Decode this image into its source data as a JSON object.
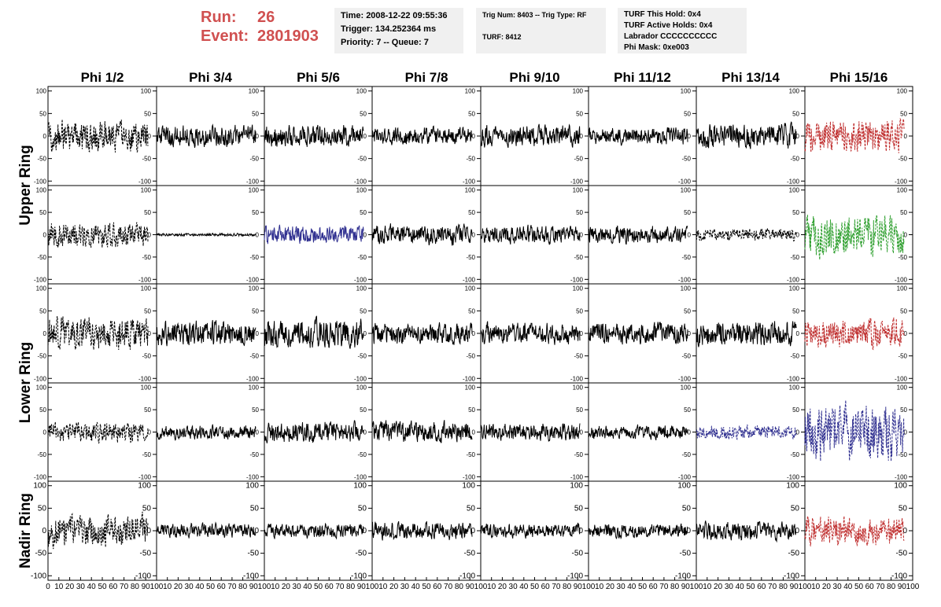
{
  "header": {
    "run_label": "Run:",
    "run_value": "26",
    "event_label": "Event:",
    "event_value": "2801903",
    "box1": [
      "Time: 2008-12-22 09:55:36",
      "Trigger: 134.252364 ms",
      "Priority: 7 -- Queue: 7"
    ],
    "box2": [
      "Trig Num: 8403 -- Trig Type: RF",
      "",
      "TURF: 8412"
    ],
    "box3": [
      "TURF This Hold: 0x4",
      "TURF Active Holds: 0x4",
      "Labrador CCCCCCCCCC",
      "Phi Mask: 0xe003"
    ]
  },
  "colors": {
    "black": "#000000",
    "red": "#c03030",
    "green": "#30a030",
    "blue": "#303090"
  },
  "chart_data": {
    "type": "line",
    "columns": [
      "Phi 1/2",
      "Phi 3/4",
      "Phi 5/6",
      "Phi 7/8",
      "Phi 9/10",
      "Phi 11/12",
      "Phi 13/14",
      "Phi 15/16"
    ],
    "ring_labels": [
      {
        "text": "Upper Ring",
        "rows": [
          0,
          1
        ]
      },
      {
        "text": "Lower Ring",
        "rows": [
          2,
          3
        ]
      },
      {
        "text": "Nadir Ring",
        "rows": [
          4,
          4
        ]
      }
    ],
    "xlim": [
      0,
      100
    ],
    "ylim": [
      -110,
      110
    ],
    "y_ticks": [
      -100,
      -50,
      0,
      50,
      100
    ],
    "x_tick_labels": [
      "0",
      "10",
      "20",
      "30",
      "40",
      "50",
      "60",
      "70",
      "80",
      "90",
      "100"
    ],
    "panels": [
      [
        {
          "color": "black",
          "amp": 45,
          "style": "dashed"
        },
        {
          "color": "black",
          "amp": 30,
          "style": "solid"
        },
        {
          "color": "black",
          "amp": 30,
          "style": "solid"
        },
        {
          "color": "black",
          "amp": 25,
          "style": "solid"
        },
        {
          "color": "black",
          "amp": 30,
          "style": "solid"
        },
        {
          "color": "black",
          "amp": 25,
          "style": "solid"
        },
        {
          "color": "black",
          "amp": 35,
          "style": "solid"
        },
        {
          "color": "red",
          "amp": 45,
          "style": "dashed"
        }
      ],
      [
        {
          "color": "black",
          "amp": 35,
          "style": "dashed"
        },
        {
          "color": "black",
          "amp": 4,
          "style": "solid"
        },
        {
          "color": "blue",
          "amp": 25,
          "style": "solid"
        },
        {
          "color": "black",
          "amp": 30,
          "style": "solid"
        },
        {
          "color": "black",
          "amp": 25,
          "style": "solid"
        },
        {
          "color": "black",
          "amp": 25,
          "style": "solid"
        },
        {
          "color": "black",
          "amp": 18,
          "style": "dashed"
        },
        {
          "color": "green",
          "amp": 60,
          "style": "dashed"
        }
      ],
      [
        {
          "color": "black",
          "amp": 45,
          "style": "dashed"
        },
        {
          "color": "black",
          "amp": 35,
          "style": "solid"
        },
        {
          "color": "black",
          "amp": 40,
          "style": "solid"
        },
        {
          "color": "black",
          "amp": 30,
          "style": "solid"
        },
        {
          "color": "black",
          "amp": 30,
          "style": "solid"
        },
        {
          "color": "black",
          "amp": 30,
          "style": "solid"
        },
        {
          "color": "black",
          "amp": 35,
          "style": "solid"
        },
        {
          "color": "red",
          "amp": 40,
          "style": "dashed"
        }
      ],
      [
        {
          "color": "black",
          "amp": 30,
          "style": "dashed"
        },
        {
          "color": "black",
          "amp": 20,
          "style": "solid"
        },
        {
          "color": "black",
          "amp": 30,
          "style": "solid"
        },
        {
          "color": "black",
          "amp": 30,
          "style": "solid"
        },
        {
          "color": "black",
          "amp": 25,
          "style": "solid"
        },
        {
          "color": "black",
          "amp": 20,
          "style": "solid"
        },
        {
          "color": "blue",
          "amp": 20,
          "style": "dashed"
        },
        {
          "color": "blue",
          "amp": 80,
          "style": "dashed"
        }
      ],
      [
        {
          "color": "black",
          "amp": 45,
          "style": "dashed"
        },
        {
          "color": "black",
          "amp": 20,
          "style": "solid"
        },
        {
          "color": "black",
          "amp": 20,
          "style": "solid"
        },
        {
          "color": "black",
          "amp": 25,
          "style": "solid"
        },
        {
          "color": "black",
          "amp": 20,
          "style": "solid"
        },
        {
          "color": "black",
          "amp": 20,
          "style": "solid"
        },
        {
          "color": "black",
          "amp": 25,
          "style": "solid"
        },
        {
          "color": "red",
          "amp": 40,
          "style": "dashed"
        }
      ]
    ]
  }
}
